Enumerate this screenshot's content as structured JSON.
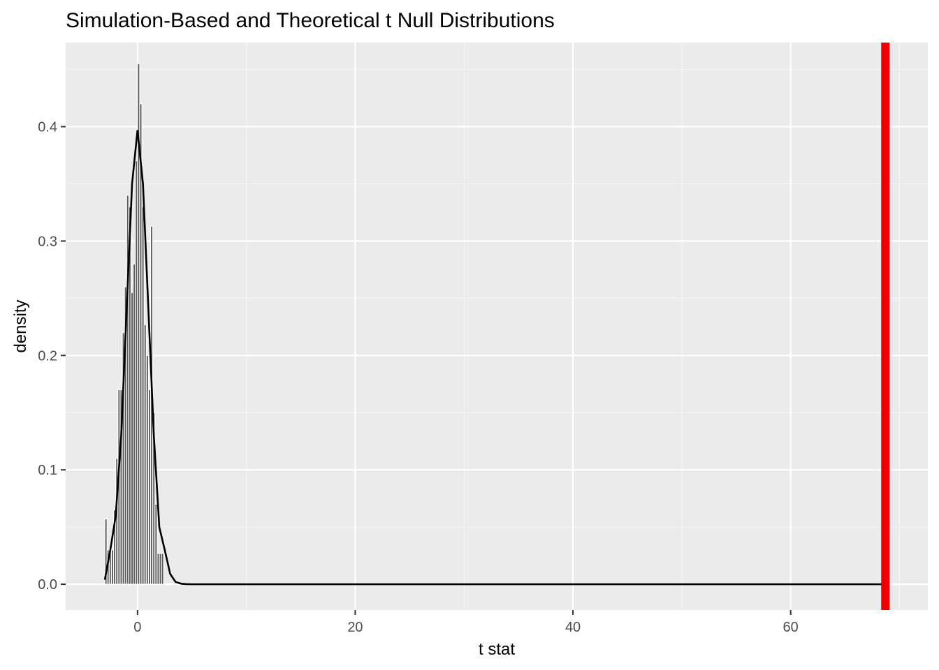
{
  "chart_data": {
    "type": "histogram",
    "title": "Simulation-Based and Theoretical t Null Distributions",
    "xlabel": "t stat",
    "ylabel": "density",
    "xlim": [
      -6.6,
      72.6
    ],
    "ylim": [
      -0.0225,
      0.4735
    ],
    "x_ticks": [
      0,
      20,
      40,
      60
    ],
    "y_ticks": [
      0.0,
      0.1,
      0.2,
      0.3,
      0.4
    ],
    "y_tick_labels": [
      "0.0",
      "0.1",
      "0.2",
      "0.3",
      "0.4"
    ],
    "x_tick_labels": [
      "0",
      "20",
      "40",
      "60"
    ],
    "histogram": {
      "bin_width": 0.2,
      "bin_starts": [
        -3.0,
        -2.8,
        -2.6,
        -2.4,
        -2.2,
        -2.0,
        -1.8,
        -1.6,
        -1.4,
        -1.2,
        -1.0,
        -0.8,
        -0.6,
        -0.4,
        -0.2,
        0.0,
        0.2,
        0.4,
        0.6,
        0.8,
        1.0,
        1.2,
        1.4,
        1.6,
        1.8,
        2.0,
        2.2
      ],
      "density": [
        0.057,
        0.03,
        0.028,
        0.03,
        0.065,
        0.11,
        0.17,
        0.17,
        0.22,
        0.26,
        0.34,
        0.33,
        0.255,
        0.28,
        0.37,
        0.455,
        0.42,
        0.33,
        0.227,
        0.2,
        0.17,
        0.313,
        0.15,
        0.07,
        0.027,
        0.027,
        0.027
      ],
      "fill": "#595959",
      "outline": "#ffffff"
    },
    "theoretical_curve": {
      "name": "t distribution",
      "color": "#000000",
      "x": [
        -3.0,
        -2.5,
        -2.0,
        -1.5,
        -1.0,
        -0.5,
        0.0,
        0.5,
        1.0,
        1.5,
        2.0,
        2.5,
        3.0,
        3.5,
        4.0,
        4.5,
        5.0,
        10,
        20,
        30,
        40,
        50,
        60,
        68.7
      ],
      "y": [
        0.004,
        0.03,
        0.06,
        0.13,
        0.24,
        0.35,
        0.397,
        0.35,
        0.24,
        0.13,
        0.05,
        0.03,
        0.009,
        0.002,
        0.0005,
        0.0001,
        0.0,
        0.0,
        0.0,
        0.0,
        0.0,
        0.0,
        0.0,
        0.0
      ]
    },
    "observed_statistic": {
      "x": 68.7,
      "color": "#ee0000"
    },
    "colors": {
      "panel_background": "#ebebeb",
      "grid_major": "#ffffff",
      "grid_minor": "#f5f5f5"
    },
    "grid": true,
    "legend": "none"
  }
}
